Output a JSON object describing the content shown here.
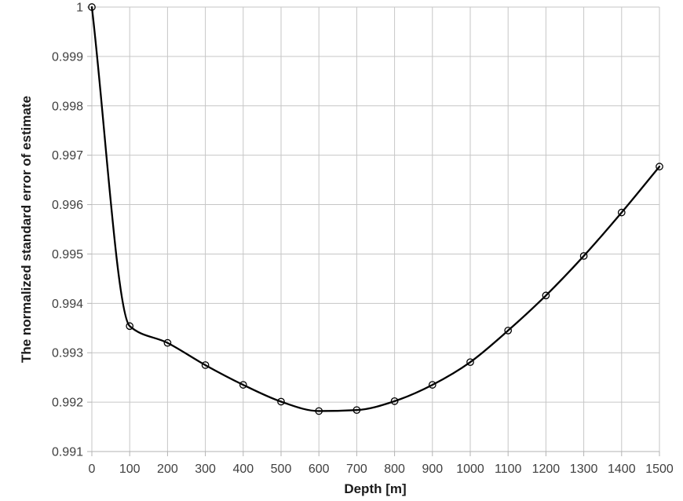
{
  "chart_data": {
    "type": "line",
    "title": "",
    "xlabel": "Depth [m]",
    "ylabel": "The normalized standard error of estimate",
    "x": [
      0,
      100,
      200,
      300,
      400,
      500,
      600,
      700,
      800,
      900,
      1000,
      1100,
      1200,
      1300,
      1400,
      1500
    ],
    "y": [
      1.0,
      0.99354,
      0.9932,
      0.99275,
      0.99235,
      0.99201,
      0.99182,
      0.99184,
      0.99202,
      0.99235,
      0.99281,
      0.99345,
      0.99416,
      0.99496,
      0.99584,
      0.99677
    ],
    "xlim": [
      0,
      1500
    ],
    "ylim": [
      0.991,
      1.0
    ],
    "x_ticks": [
      0,
      100,
      200,
      300,
      400,
      500,
      600,
      700,
      800,
      900,
      1000,
      1100,
      1200,
      1300,
      1400,
      1500
    ],
    "x_tick_labels": [
      "0",
      "100",
      "200",
      "300",
      "400",
      "500",
      "600",
      "700",
      "800",
      "900",
      "1000",
      "1100",
      "1200",
      "1300",
      "1400",
      "1500"
    ],
    "y_ticks": [
      0.991,
      0.992,
      0.993,
      0.994,
      0.995,
      0.996,
      0.997,
      0.998,
      0.999,
      1.0
    ],
    "y_tick_labels": [
      "0.991",
      "0.992",
      "0.993",
      "0.994",
      "0.995",
      "0.996",
      "0.997",
      "0.998",
      "0.999",
      "1"
    ],
    "grid": true,
    "legend": "none",
    "line_style": "smooth",
    "marker": "open-circle",
    "colors": {
      "line": "#000000",
      "marker_stroke": "#000000",
      "grid": "#c6c6c6",
      "axis": "#b3b3b3",
      "tick_label": "#3f3f3f",
      "axis_title": "#1a1a1a",
      "background": "#ffffff"
    }
  }
}
